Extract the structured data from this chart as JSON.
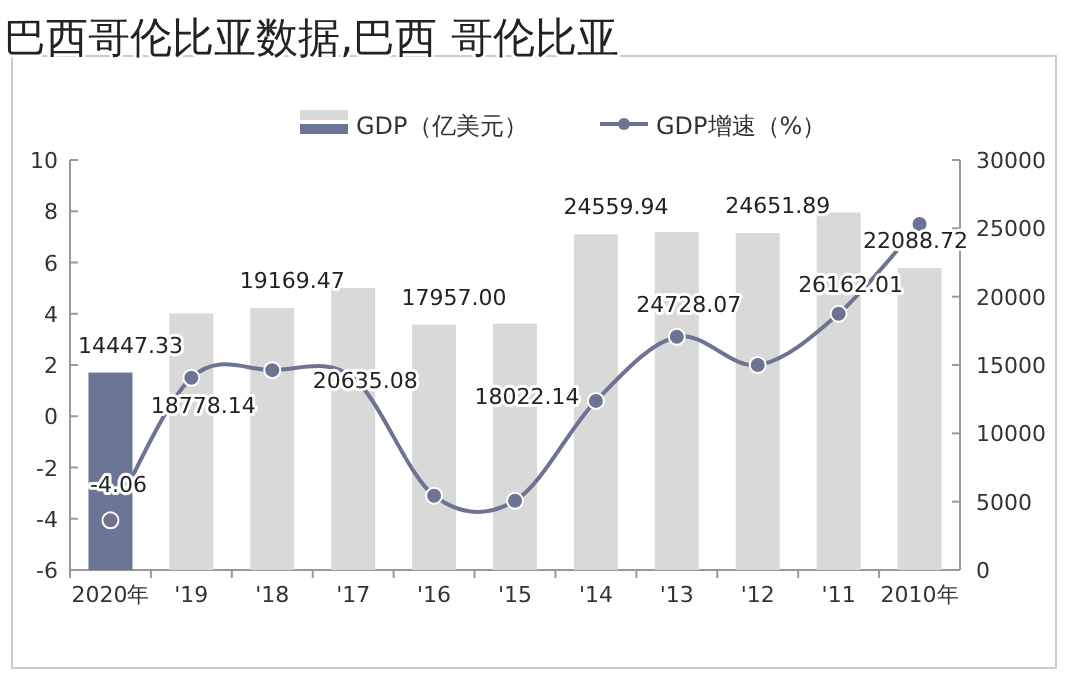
{
  "chart_data": {
    "type": "bar",
    "title": "巴西哥伦比亚数据,巴西 哥伦比亚",
    "categories": [
      "2020年",
      "'19",
      "'18",
      "'17",
      "'16",
      "'15",
      "'14",
      "'13",
      "'12",
      "'11",
      "2010年"
    ],
    "series": [
      {
        "name": "GDP（亿美元）",
        "type": "bar",
        "axis": "y2",
        "colors": [
          "#6b7596",
          "#d9d9d9",
          "#d9d9d9",
          "#d9d9d9",
          "#d9d9d9",
          "#d9d9d9",
          "#d9d9d9",
          "#d9d9d9",
          "#d9d9d9",
          "#d9d9d9",
          "#d9d9d9"
        ],
        "color": "#d9d9d9",
        "values": [
          14447.33,
          18778.14,
          19169.47,
          20635.08,
          17957,
          18022.14,
          24559.94,
          24728.07,
          24651.89,
          26162.01,
          22088.72
        ],
        "value_labels": [
          "14447.33",
          "18778.14",
          "19169.47",
          "20635.08",
          "17957.00",
          "18022.14",
          "24559.94",
          "24728.07",
          "24651.89",
          "26162.01",
          "22088.72"
        ]
      },
      {
        "name": "GDP增速（%）",
        "type": "line",
        "color": "#6e7391",
        "marker": "circle",
        "values": [
          -4.06,
          1.5,
          1.8,
          1.5,
          -3.1,
          -3.3,
          0.6,
          3.1,
          2.0,
          4.0,
          7.5
        ],
        "value_labels": [
          "-4.06",
          null,
          null,
          null,
          null,
          null,
          null,
          null,
          null,
          null,
          null
        ]
      }
    ],
    "ylim": [
      -6,
      10
    ],
    "yticks": [
      -6,
      -4,
      -2,
      0,
      2,
      4,
      6,
      8,
      10
    ],
    "y2lim": [
      0,
      30000
    ],
    "y2ticks": [
      0,
      5000,
      10000,
      15000,
      20000,
      25000,
      30000
    ],
    "grid": false,
    "legend": "top"
  }
}
